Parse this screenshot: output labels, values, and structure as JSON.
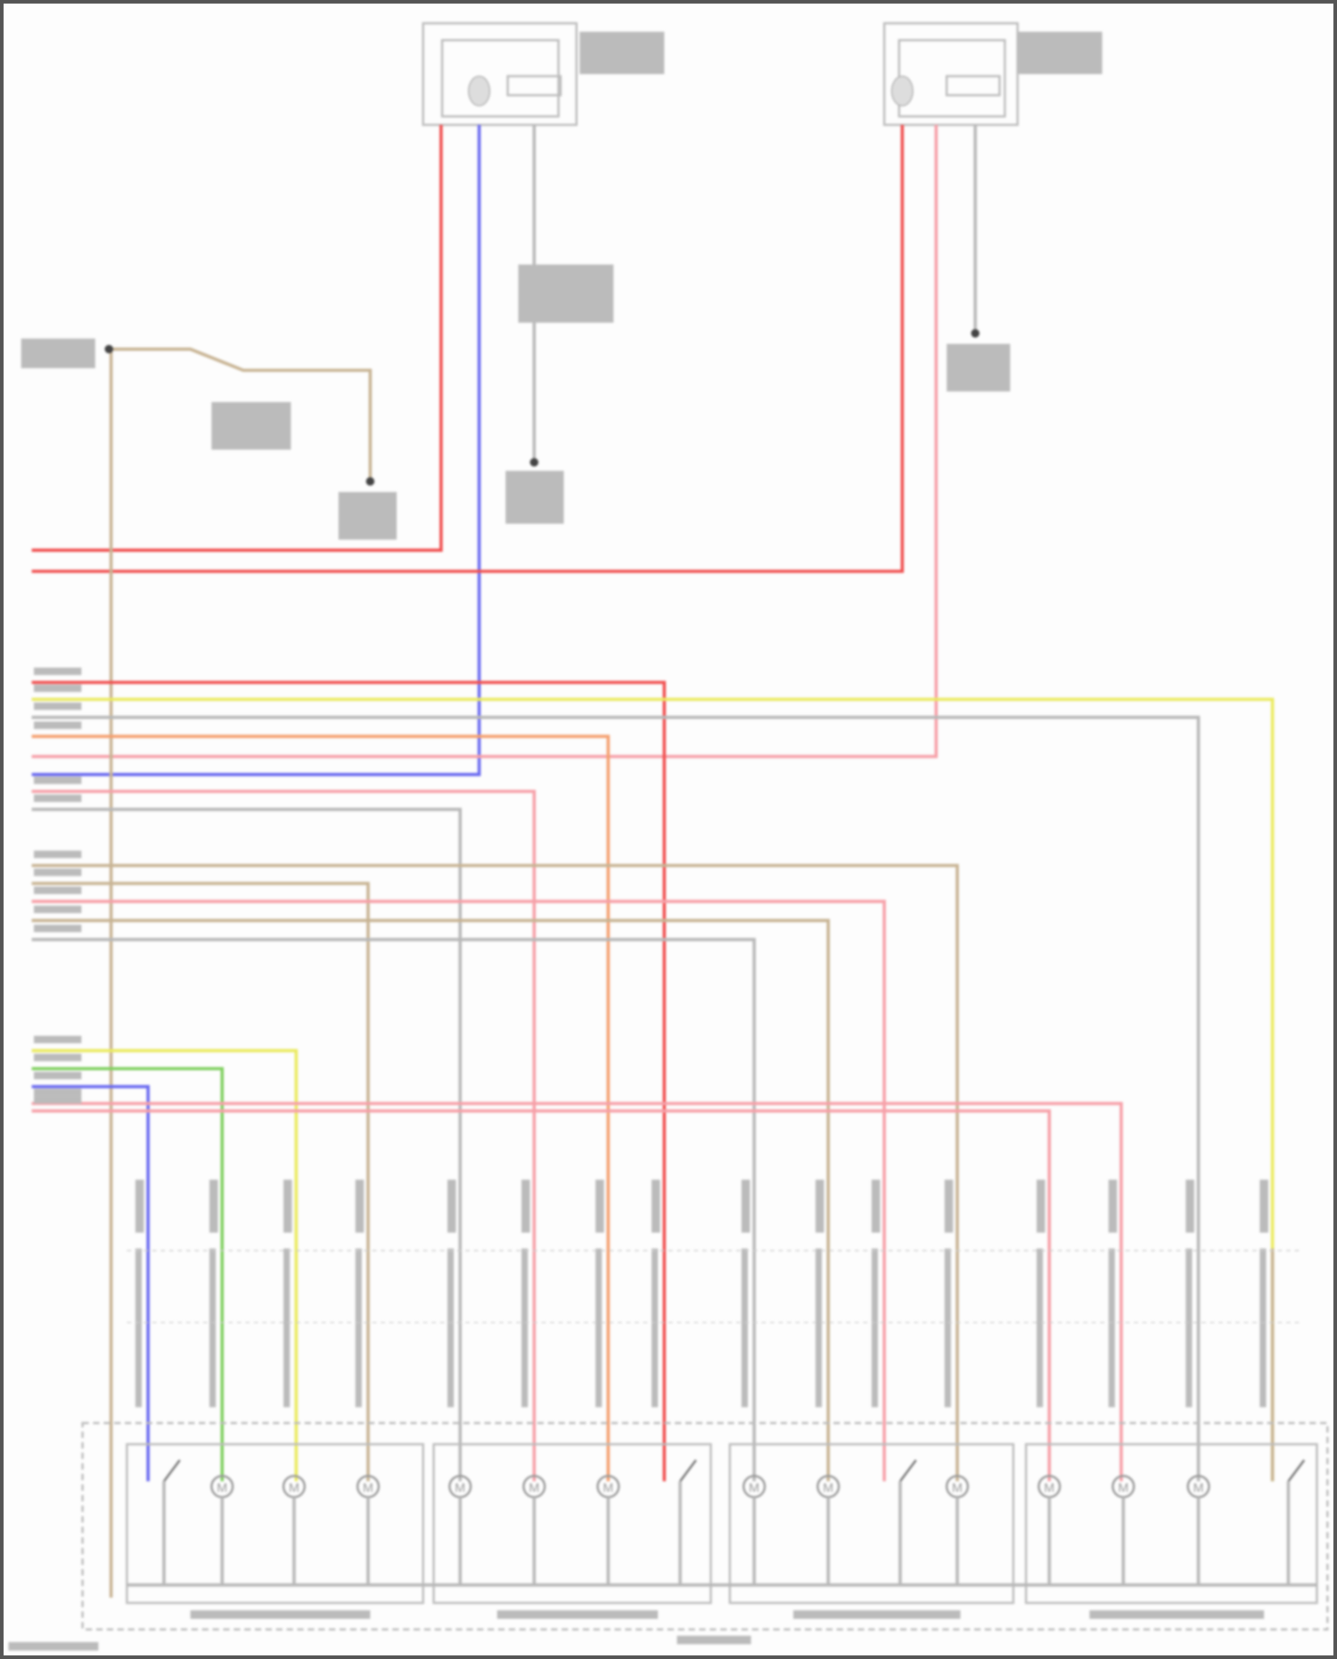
{
  "diagram": {
    "type": "wiring-diagram",
    "text_legibility": "blurred",
    "wire_colors": {
      "red": "#f05050",
      "pink": "#f6a0a8",
      "blue": "#6a6af0",
      "yellow": "#eaea60",
      "green": "#80d060",
      "orange": "#f4a070",
      "tan": "#c8b494",
      "grey": "#b8b8b8",
      "frame": "#888888"
    },
    "components": [
      {
        "id": "left-top-connector"
      },
      {
        "id": "right-top-connector"
      },
      {
        "id": "seat-module-1"
      },
      {
        "id": "seat-module-2"
      },
      {
        "id": "seat-module-3"
      },
      {
        "id": "seat-module-4"
      }
    ]
  }
}
